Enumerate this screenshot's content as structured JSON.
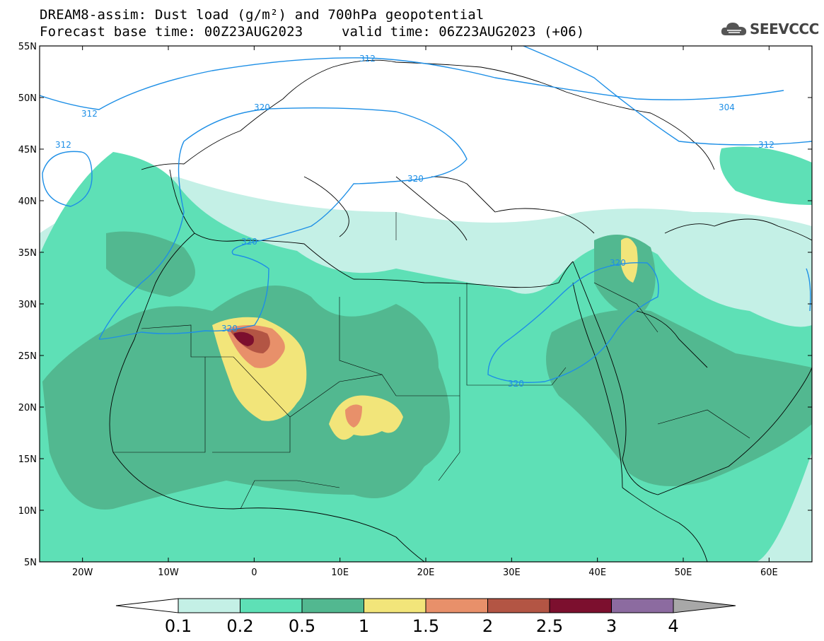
{
  "header": {
    "title_line1": "DREAM8-assim: Dust load (g/m²) and 700hPa geopotential",
    "title_line2": "Forecast base time: 00Z23AUG2023",
    "valid_time": "valid time: 06Z23AUG2023 (+06)",
    "logo_text": "SEEVCCC",
    "logo_icon": "cloud-logo-icon"
  },
  "map": {
    "lat_labels": [
      "55N",
      "50N",
      "45N",
      "40N",
      "35N",
      "30N",
      "25N",
      "20N",
      "15N",
      "10N",
      "5N"
    ],
    "lon_labels": [
      "20W",
      "10W",
      "0",
      "10E",
      "20E",
      "30E",
      "40E",
      "50E",
      "60E"
    ],
    "extent": {
      "lon": [
        -25,
        65
      ],
      "lat": [
        5,
        55
      ]
    },
    "contour_labels": {
      "l312a": "312",
      "l312b": "312",
      "l312c": "312",
      "l312d": "312",
      "l320a": "320",
      "l320b": "320",
      "l320c": "320",
      "l320d": "320",
      "l320e": "320",
      "l320f": "320",
      "l304": "304"
    }
  },
  "colorbar": {
    "labels": [
      "0.1",
      "0.2",
      "0.5",
      "1",
      "1.5",
      "2",
      "2.5",
      "3",
      "4"
    ],
    "colors": [
      "#c4f0e6",
      "#5ee0b6",
      "#52b890",
      "#f2e57a",
      "#e8906a",
      "#b35544",
      "#7c0f2e",
      "#8c6ba0"
    ],
    "low_extend_color": "#ffffff",
    "high_extend_color": "#a8a8a8"
  }
}
